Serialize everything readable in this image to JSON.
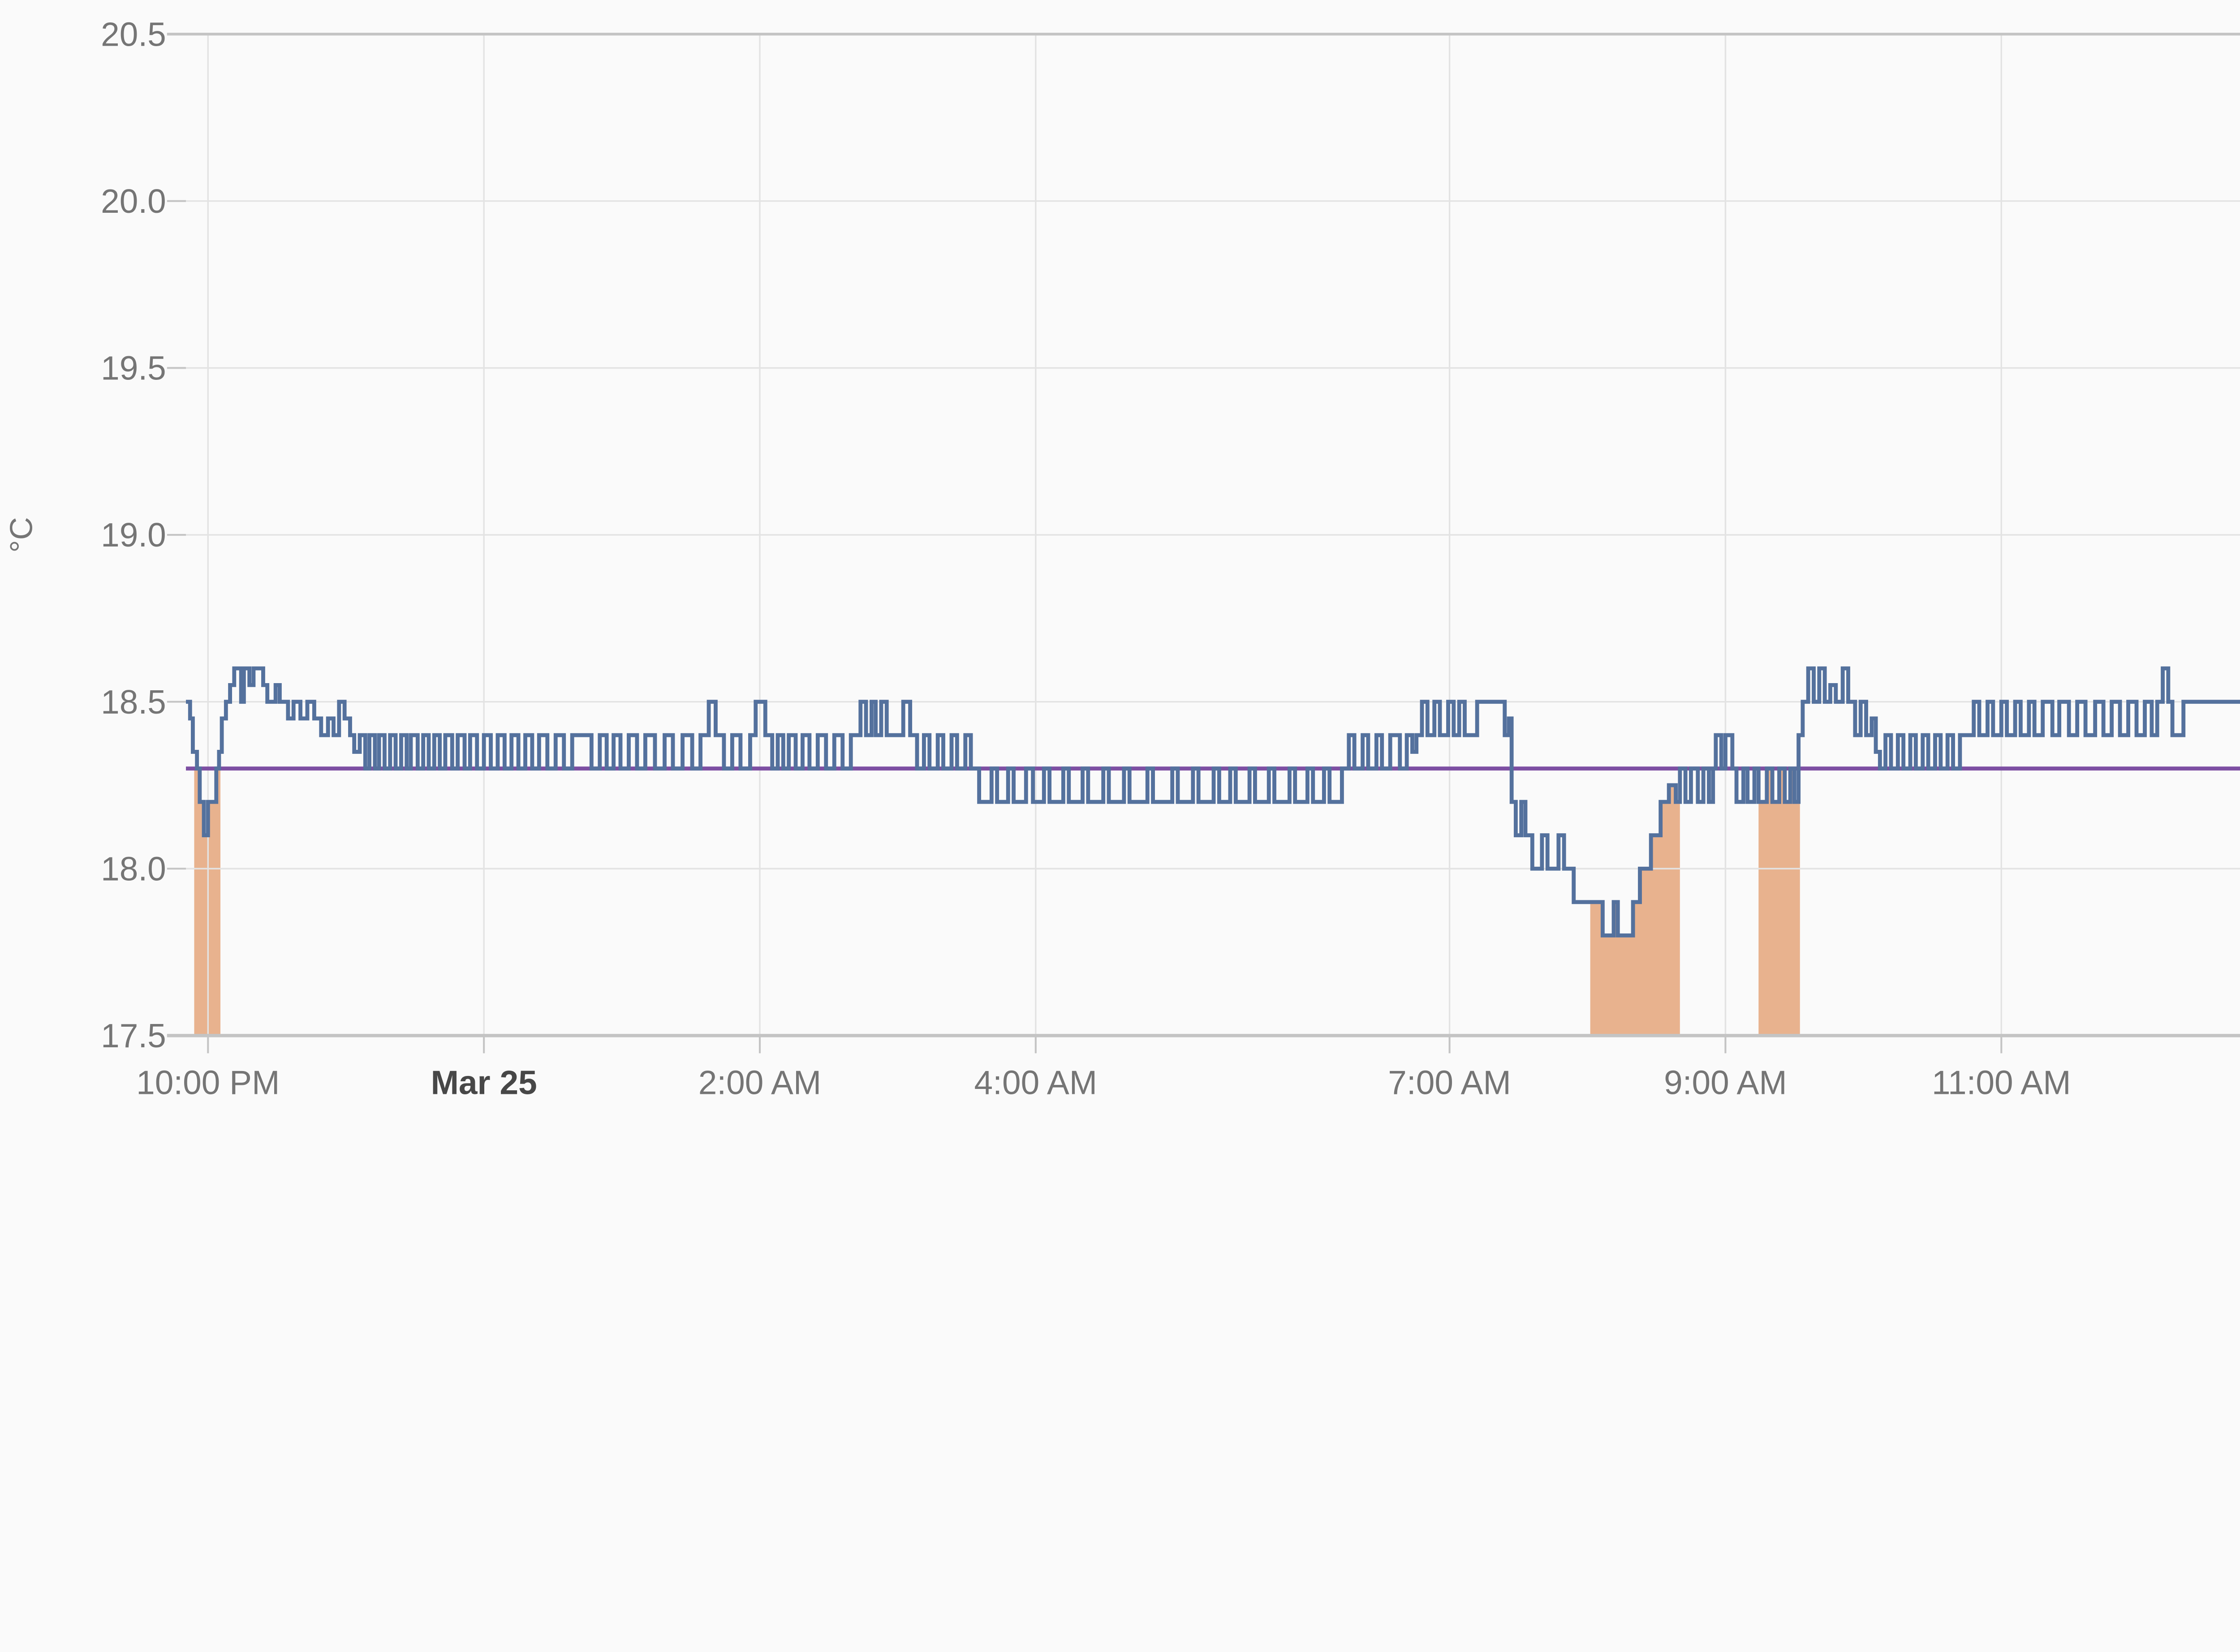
{
  "chart_data": {
    "type": "line",
    "line_style": "step-after",
    "title": "",
    "xlabel": "",
    "ylabel": "°C",
    "grid": true,
    "background_color": "#fafafa",
    "gridline_color": "#e3e3e3",
    "border_color": "#c4c4c4",
    "tick_color": "#c4c4c4",
    "label_color": "#757575",
    "date_label_color": "#474747",
    "ylim": [
      17.5,
      20.5
    ],
    "y_tick_step": 0.5,
    "y_tick_labels": [
      "20.5",
      "20.0",
      "19.5",
      "19.0",
      "18.5",
      "18.0",
      "17.5"
    ],
    "xlim_hours": [
      21.84,
      36.73
    ],
    "x_ticks": [
      {
        "hour": 22,
        "label": "10:00 PM",
        "bold": false
      },
      {
        "hour": 24,
        "label": "Mar 25",
        "bold": true
      },
      {
        "hour": 26,
        "label": "2:00 AM",
        "bold": false
      },
      {
        "hour": 28,
        "label": "4:00 AM",
        "bold": false
      },
      {
        "hour": 31,
        "label": "7:00 AM",
        "bold": false
      },
      {
        "hour": 33,
        "label": "9:00 AM",
        "bold": false
      },
      {
        "hour": 35,
        "label": "11:00 AM",
        "bold": false
      }
    ],
    "target_temperature": {
      "name": "target-temperature",
      "value": 18.3,
      "color": "#7d4fa3"
    },
    "heating_intervals": {
      "name": "heating-active",
      "color": "rgba(220,130,70,0.6)",
      "cap_value": 18.3,
      "ranges_hours": [
        [
          21.9,
          22.09
        ],
        [
          32.02,
          32.67
        ],
        [
          33.24,
          33.54
        ]
      ]
    },
    "series": [
      {
        "name": "temperature",
        "unit": "°C",
        "color": "#54719d",
        "points": [
          [
            21.84,
            18.5
          ],
          [
            21.87,
            18.45
          ],
          [
            21.89,
            18.35
          ],
          [
            21.92,
            18.3
          ],
          [
            21.94,
            18.2
          ],
          [
            21.97,
            18.1
          ],
          [
            22.0,
            18.2
          ],
          [
            22.06,
            18.3
          ],
          [
            22.08,
            18.35
          ],
          [
            22.1,
            18.45
          ],
          [
            22.13,
            18.5
          ],
          [
            22.16,
            18.55
          ],
          [
            22.19,
            18.6
          ],
          [
            22.24,
            18.5
          ],
          [
            22.26,
            18.6
          ],
          [
            22.3,
            18.55
          ],
          [
            22.33,
            18.6
          ],
          [
            22.4,
            18.55
          ],
          [
            22.43,
            18.5
          ],
          [
            22.49,
            18.55
          ],
          [
            22.52,
            18.5
          ],
          [
            22.58,
            18.45
          ],
          [
            22.62,
            18.5
          ],
          [
            22.67,
            18.45
          ],
          [
            22.72,
            18.5
          ],
          [
            22.77,
            18.45
          ],
          [
            22.82,
            18.4
          ],
          [
            22.87,
            18.45
          ],
          [
            22.91,
            18.4
          ],
          [
            22.95,
            18.5
          ],
          [
            22.99,
            18.45
          ],
          [
            23.03,
            18.4
          ],
          [
            23.06,
            18.35
          ],
          [
            23.1,
            18.4
          ],
          [
            23.14,
            18.3
          ],
          [
            23.17,
            18.4
          ],
          [
            23.21,
            18.3
          ],
          [
            23.24,
            18.4
          ],
          [
            23.28,
            18.3
          ],
          [
            23.32,
            18.4
          ],
          [
            23.36,
            18.3
          ],
          [
            23.4,
            18.4
          ],
          [
            23.44,
            18.3
          ],
          [
            23.47,
            18.4
          ],
          [
            23.52,
            18.3
          ],
          [
            23.56,
            18.4
          ],
          [
            23.6,
            18.3
          ],
          [
            23.64,
            18.4
          ],
          [
            23.68,
            18.3
          ],
          [
            23.72,
            18.4
          ],
          [
            23.77,
            18.3
          ],
          [
            23.81,
            18.4
          ],
          [
            23.86,
            18.3
          ],
          [
            23.9,
            18.4
          ],
          [
            23.95,
            18.3
          ],
          [
            24.0,
            18.4
          ],
          [
            24.05,
            18.3
          ],
          [
            24.1,
            18.4
          ],
          [
            24.15,
            18.3
          ],
          [
            24.2,
            18.4
          ],
          [
            24.25,
            18.3
          ],
          [
            24.3,
            18.4
          ],
          [
            24.35,
            18.3
          ],
          [
            24.4,
            18.4
          ],
          [
            24.46,
            18.3
          ],
          [
            24.52,
            18.4
          ],
          [
            24.58,
            18.3
          ],
          [
            24.64,
            18.4
          ],
          [
            24.78,
            18.3
          ],
          [
            24.84,
            18.4
          ],
          [
            24.89,
            18.3
          ],
          [
            24.94,
            18.4
          ],
          [
            24.99,
            18.3
          ],
          [
            25.05,
            18.4
          ],
          [
            25.11,
            18.3
          ],
          [
            25.17,
            18.4
          ],
          [
            25.24,
            18.3
          ],
          [
            25.31,
            18.4
          ],
          [
            25.37,
            18.3
          ],
          [
            25.44,
            18.4
          ],
          [
            25.51,
            18.3
          ],
          [
            25.57,
            18.4
          ],
          [
            25.63,
            18.5
          ],
          [
            25.68,
            18.4
          ],
          [
            25.74,
            18.3
          ],
          [
            25.8,
            18.4
          ],
          [
            25.86,
            18.3
          ],
          [
            25.93,
            18.4
          ],
          [
            25.97,
            18.5
          ],
          [
            26.04,
            18.4
          ],
          [
            26.09,
            18.3
          ],
          [
            26.13,
            18.4
          ],
          [
            26.17,
            18.3
          ],
          [
            26.21,
            18.4
          ],
          [
            26.26,
            18.3
          ],
          [
            26.31,
            18.4
          ],
          [
            26.36,
            18.3
          ],
          [
            26.42,
            18.4
          ],
          [
            26.48,
            18.3
          ],
          [
            26.54,
            18.4
          ],
          [
            26.6,
            18.3
          ],
          [
            26.66,
            18.4
          ],
          [
            26.73,
            18.5
          ],
          [
            26.77,
            18.4
          ],
          [
            26.81,
            18.5
          ],
          [
            26.84,
            18.4
          ],
          [
            26.88,
            18.5
          ],
          [
            26.92,
            18.4
          ],
          [
            27.04,
            18.5
          ],
          [
            27.09,
            18.4
          ],
          [
            27.14,
            18.3
          ],
          [
            27.19,
            18.4
          ],
          [
            27.23,
            18.3
          ],
          [
            27.29,
            18.4
          ],
          [
            27.33,
            18.3
          ],
          [
            27.39,
            18.4
          ],
          [
            27.43,
            18.3
          ],
          [
            27.49,
            18.4
          ],
          [
            27.53,
            18.3
          ],
          [
            27.59,
            18.2
          ],
          [
            27.68,
            18.3
          ],
          [
            27.72,
            18.2
          ],
          [
            27.8,
            18.3
          ],
          [
            27.84,
            18.2
          ],
          [
            27.93,
            18.3
          ],
          [
            27.98,
            18.2
          ],
          [
            28.06,
            18.3
          ],
          [
            28.1,
            18.2
          ],
          [
            28.2,
            18.3
          ],
          [
            28.24,
            18.2
          ],
          [
            28.34,
            18.3
          ],
          [
            28.38,
            18.2
          ],
          [
            28.49,
            18.3
          ],
          [
            28.53,
            18.2
          ],
          [
            28.64,
            18.3
          ],
          [
            28.68,
            18.2
          ],
          [
            28.81,
            18.3
          ],
          [
            28.85,
            18.2
          ],
          [
            28.99,
            18.3
          ],
          [
            29.03,
            18.2
          ],
          [
            29.14,
            18.3
          ],
          [
            29.18,
            18.2
          ],
          [
            29.29,
            18.3
          ],
          [
            29.33,
            18.2
          ],
          [
            29.41,
            18.3
          ],
          [
            29.45,
            18.2
          ],
          [
            29.55,
            18.3
          ],
          [
            29.59,
            18.2
          ],
          [
            29.69,
            18.3
          ],
          [
            29.73,
            18.2
          ],
          [
            29.84,
            18.3
          ],
          [
            29.88,
            18.2
          ],
          [
            29.97,
            18.3
          ],
          [
            30.01,
            18.2
          ],
          [
            30.09,
            18.3
          ],
          [
            30.13,
            18.2
          ],
          [
            30.22,
            18.3
          ],
          [
            30.27,
            18.4
          ],
          [
            30.31,
            18.3
          ],
          [
            30.37,
            18.4
          ],
          [
            30.41,
            18.3
          ],
          [
            30.47,
            18.4
          ],
          [
            30.51,
            18.3
          ],
          [
            30.57,
            18.4
          ],
          [
            30.64,
            18.3
          ],
          [
            30.69,
            18.4
          ],
          [
            30.73,
            18.35
          ],
          [
            30.76,
            18.4
          ],
          [
            30.8,
            18.5
          ],
          [
            30.84,
            18.4
          ],
          [
            30.89,
            18.5
          ],
          [
            30.93,
            18.4
          ],
          [
            30.99,
            18.5
          ],
          [
            31.03,
            18.4
          ],
          [
            31.07,
            18.5
          ],
          [
            31.11,
            18.4
          ],
          [
            31.2,
            18.5
          ],
          [
            31.4,
            18.4
          ],
          [
            31.43,
            18.45
          ],
          [
            31.45,
            18.2
          ],
          [
            31.48,
            18.1
          ],
          [
            31.52,
            18.2
          ],
          [
            31.55,
            18.1
          ],
          [
            31.6,
            18.0
          ],
          [
            31.67,
            18.1
          ],
          [
            31.71,
            18.0
          ],
          [
            31.79,
            18.1
          ],
          [
            31.83,
            18.0
          ],
          [
            31.9,
            17.9
          ],
          [
            32.11,
            17.8
          ],
          [
            32.19,
            17.9
          ],
          [
            32.22,
            17.8
          ],
          [
            32.33,
            17.9
          ],
          [
            32.38,
            18.0
          ],
          [
            32.46,
            18.1
          ],
          [
            32.53,
            18.2
          ],
          [
            32.59,
            18.25
          ],
          [
            32.64,
            18.2
          ],
          [
            32.67,
            18.3
          ],
          [
            32.71,
            18.2
          ],
          [
            32.75,
            18.3
          ],
          [
            32.8,
            18.2
          ],
          [
            32.84,
            18.3
          ],
          [
            32.88,
            18.2
          ],
          [
            32.91,
            18.3
          ],
          [
            32.93,
            18.4
          ],
          [
            32.97,
            18.3
          ],
          [
            33.0,
            18.4
          ],
          [
            33.05,
            18.3
          ],
          [
            33.08,
            18.2
          ],
          [
            33.13,
            18.3
          ],
          [
            33.16,
            18.2
          ],
          [
            33.21,
            18.3
          ],
          [
            33.24,
            18.2
          ],
          [
            33.3,
            18.3
          ],
          [
            33.34,
            18.2
          ],
          [
            33.39,
            18.3
          ],
          [
            33.43,
            18.2
          ],
          [
            33.47,
            18.3
          ],
          [
            33.5,
            18.2
          ],
          [
            33.53,
            18.4
          ],
          [
            33.56,
            18.5
          ],
          [
            33.6,
            18.6
          ],
          [
            33.64,
            18.5
          ],
          [
            33.68,
            18.6
          ],
          [
            33.72,
            18.5
          ],
          [
            33.76,
            18.55
          ],
          [
            33.8,
            18.5
          ],
          [
            33.85,
            18.6
          ],
          [
            33.89,
            18.5
          ],
          [
            33.94,
            18.4
          ],
          [
            33.98,
            18.5
          ],
          [
            34.02,
            18.4
          ],
          [
            34.06,
            18.45
          ],
          [
            34.09,
            18.35
          ],
          [
            34.12,
            18.3
          ],
          [
            34.16,
            18.4
          ],
          [
            34.2,
            18.3
          ],
          [
            34.25,
            18.4
          ],
          [
            34.29,
            18.3
          ],
          [
            34.34,
            18.4
          ],
          [
            34.38,
            18.3
          ],
          [
            34.43,
            18.4
          ],
          [
            34.47,
            18.3
          ],
          [
            34.52,
            18.4
          ],
          [
            34.56,
            18.3
          ],
          [
            34.61,
            18.4
          ],
          [
            34.65,
            18.3
          ],
          [
            34.7,
            18.4
          ],
          [
            34.75,
            18.4
          ],
          [
            34.8,
            18.5
          ],
          [
            34.84,
            18.4
          ],
          [
            34.9,
            18.5
          ],
          [
            34.94,
            18.4
          ],
          [
            35.0,
            18.5
          ],
          [
            35.04,
            18.4
          ],
          [
            35.1,
            18.5
          ],
          [
            35.14,
            18.4
          ],
          [
            35.2,
            18.5
          ],
          [
            35.24,
            18.4
          ],
          [
            35.3,
            18.5
          ],
          [
            35.37,
            18.4
          ],
          [
            35.42,
            18.5
          ],
          [
            35.49,
            18.4
          ],
          [
            35.55,
            18.5
          ],
          [
            35.61,
            18.4
          ],
          [
            35.68,
            18.5
          ],
          [
            35.74,
            18.4
          ],
          [
            35.8,
            18.5
          ],
          [
            35.86,
            18.4
          ],
          [
            35.92,
            18.5
          ],
          [
            35.98,
            18.4
          ],
          [
            36.04,
            18.5
          ],
          [
            36.09,
            18.4
          ],
          [
            36.13,
            18.5
          ],
          [
            36.17,
            18.6
          ],
          [
            36.21,
            18.5
          ],
          [
            36.24,
            18.4
          ],
          [
            36.32,
            18.5
          ],
          [
            36.73,
            18.5
          ]
        ]
      }
    ],
    "legend": {
      "visible": false
    }
  }
}
